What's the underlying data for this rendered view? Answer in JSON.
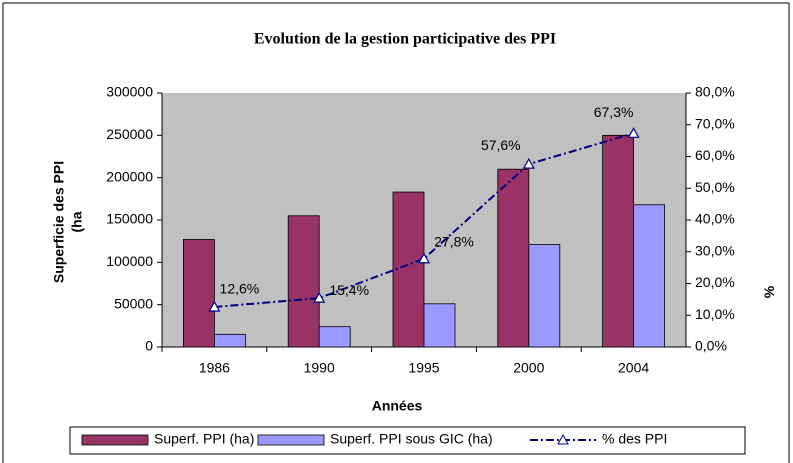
{
  "chart_data": {
    "type": "bar",
    "title": "Evolution de la gestion participative des PPI",
    "xlabel": "Années",
    "ylabel": [
      "Superficie des PPI",
      "(ha"
    ],
    "y2label": "%",
    "categories": [
      "1986",
      "1990",
      "1995",
      "2000",
      "2004"
    ],
    "series": [
      {
        "name": "Superf. PPI (ha)",
        "color": "#993366",
        "type": "bar",
        "values": [
          127000,
          155000,
          183000,
          210000,
          250000
        ]
      },
      {
        "name": "Superf. PPI sous GIC (ha)",
        "color": "#9999ff",
        "type": "bar",
        "values": [
          15000,
          24000,
          51000,
          121000,
          168000
        ]
      },
      {
        "name": "% des PPI",
        "color": "#000080",
        "type": "line",
        "axis": "y2",
        "values": [
          12.6,
          15.4,
          27.8,
          57.6,
          67.3
        ],
        "value_labels": [
          "12,6%",
          "15,4%",
          "27,8%",
          "57,6%",
          "67,3%"
        ]
      }
    ],
    "ylim": [
      0,
      300000
    ],
    "yticks": [
      0,
      50000,
      100000,
      150000,
      200000,
      250000,
      300000
    ],
    "y2lim": [
      0,
      80
    ],
    "y2ticks": [
      {
        "value": 0,
        "label": "0,0%"
      },
      {
        "value": 10,
        "label": "10,0%"
      },
      {
        "value": 20,
        "label": "20,0%"
      },
      {
        "value": 30,
        "label": "30,0%"
      },
      {
        "value": 40,
        "label": "40,0%"
      },
      {
        "value": 50,
        "label": "50,0%"
      },
      {
        "value": 60,
        "label": "60,0%"
      },
      {
        "value": 70,
        "label": "70,0%"
      },
      {
        "value": 80,
        "label": "80,0%"
      }
    ],
    "legend": "bottom"
  }
}
